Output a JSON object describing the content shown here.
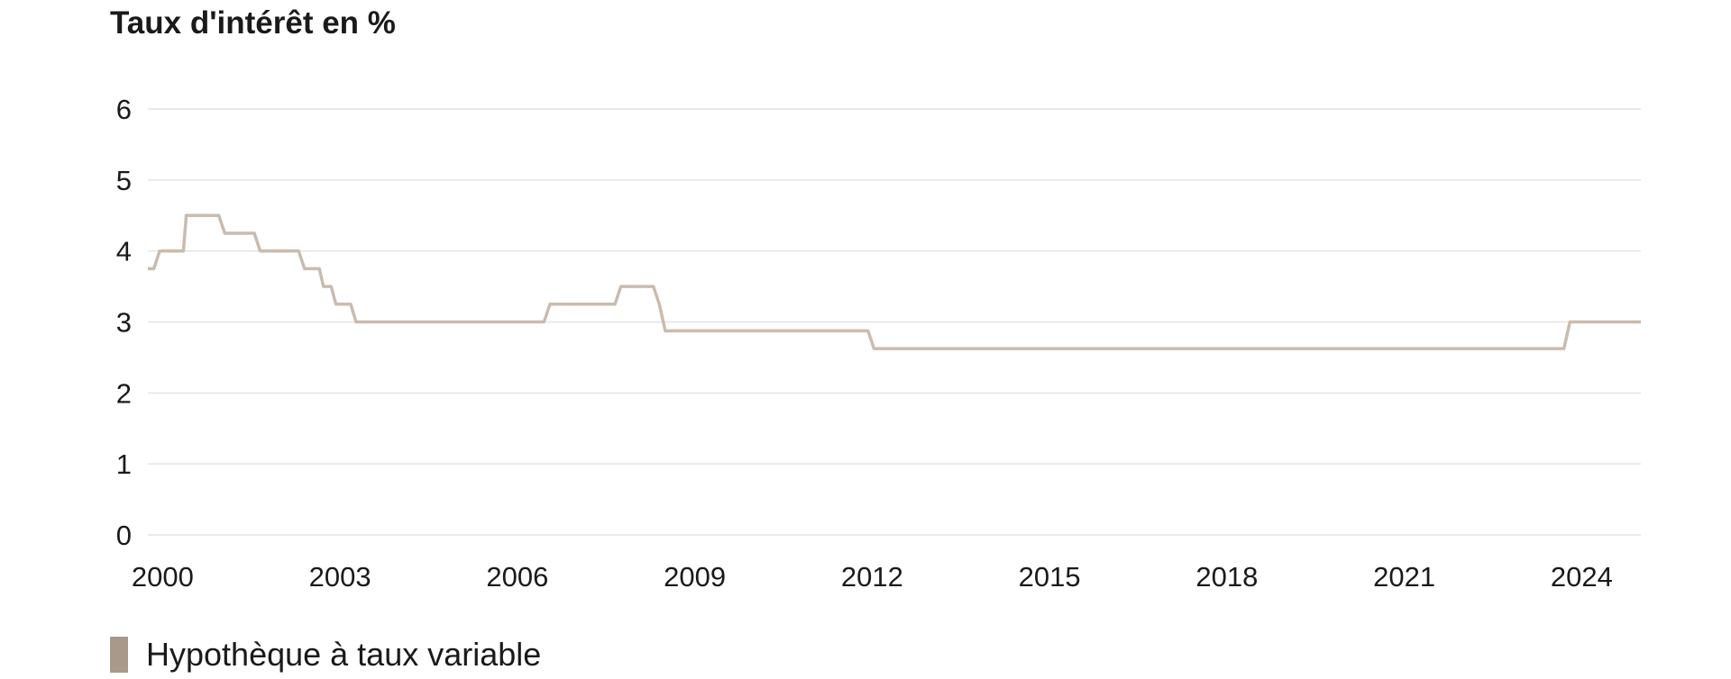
{
  "chart_data": {
    "type": "line",
    "title": "Taux d'intérêt en %",
    "xlabel": "",
    "ylabel": "",
    "xlim": [
      1999.75,
      2025.0
    ],
    "ylim": [
      0,
      6
    ],
    "yticks": [
      0,
      1,
      2,
      3,
      4,
      5,
      6
    ],
    "xticks": [
      2000,
      2003,
      2006,
      2009,
      2012,
      2015,
      2018,
      2021,
      2024
    ],
    "grid": true,
    "legend_position": "bottom-left",
    "series": [
      {
        "name": "Hypothèque à taux variable",
        "color": "#c9bcae",
        "points": [
          [
            1999.75,
            3.75
          ],
          [
            1999.85,
            3.75
          ],
          [
            1999.95,
            4.0
          ],
          [
            2000.35,
            4.0
          ],
          [
            2000.4,
            4.5
          ],
          [
            2000.95,
            4.5
          ],
          [
            2001.05,
            4.25
          ],
          [
            2001.55,
            4.25
          ],
          [
            2001.65,
            4.0
          ],
          [
            2002.3,
            4.0
          ],
          [
            2002.4,
            3.75
          ],
          [
            2002.65,
            3.75
          ],
          [
            2002.72,
            3.5
          ],
          [
            2002.85,
            3.5
          ],
          [
            2002.93,
            3.25
          ],
          [
            2003.18,
            3.25
          ],
          [
            2003.27,
            3.0
          ],
          [
            2006.45,
            3.0
          ],
          [
            2006.55,
            3.25
          ],
          [
            2007.65,
            3.25
          ],
          [
            2007.75,
            3.5
          ],
          [
            2008.3,
            3.5
          ],
          [
            2008.4,
            3.25
          ],
          [
            2008.5,
            2.875
          ],
          [
            2011.93,
            2.875
          ],
          [
            2012.03,
            2.625
          ],
          [
            2023.7,
            2.625
          ],
          [
            2023.8,
            3.0
          ],
          [
            2025.0,
            3.0
          ]
        ]
      }
    ]
  }
}
